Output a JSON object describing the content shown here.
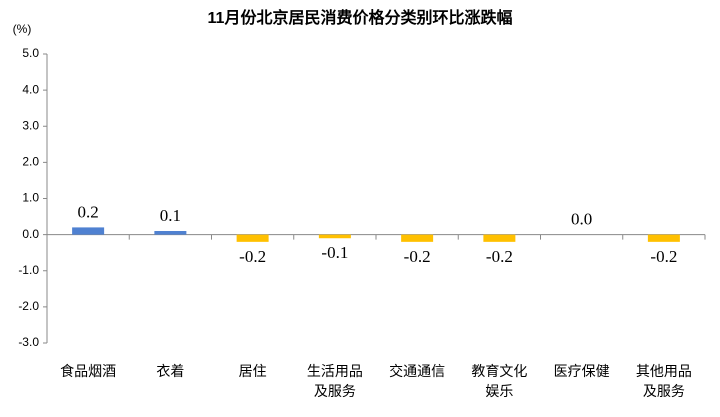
{
  "chart_data": {
    "type": "bar",
    "title": "11月份北京居民消费价格分类别环比涨跌幅",
    "y_label": "(%)",
    "categories": [
      "食品烟酒",
      "衣着",
      "居住",
      "生活用品及服务",
      "交通通信",
      "教育文化娱乐",
      "医疗保健",
      "其他用品及服务"
    ],
    "values": [
      0.2,
      0.1,
      -0.2,
      -0.1,
      -0.2,
      -0.2,
      0.0,
      -0.2
    ],
    "value_labels": [
      "0.2",
      "0.1",
      "-0.2",
      "-0.1",
      "-0.2",
      "-0.2",
      "0.0",
      "-0.2"
    ],
    "colors": [
      "#4f81d1",
      "#4f81d1",
      "#ffc000",
      "#ffc000",
      "#ffc000",
      "#ffc000",
      "#ffc000",
      "#ffc000"
    ],
    "ylim": [
      -3,
      5
    ],
    "yticks": [
      {
        "value": -3,
        "label": "-3.0"
      },
      {
        "value": -2,
        "label": "-2.0"
      },
      {
        "value": -1,
        "label": "-1.0"
      },
      {
        "value": 0,
        "label": "0.0"
      },
      {
        "value": 1,
        "label": "1.0"
      },
      {
        "value": 2,
        "label": "2.0"
      },
      {
        "value": 3,
        "label": "3.0"
      },
      {
        "value": 4,
        "label": "4.0"
      },
      {
        "value": 5,
        "label": "5.0"
      }
    ],
    "grid": false
  }
}
